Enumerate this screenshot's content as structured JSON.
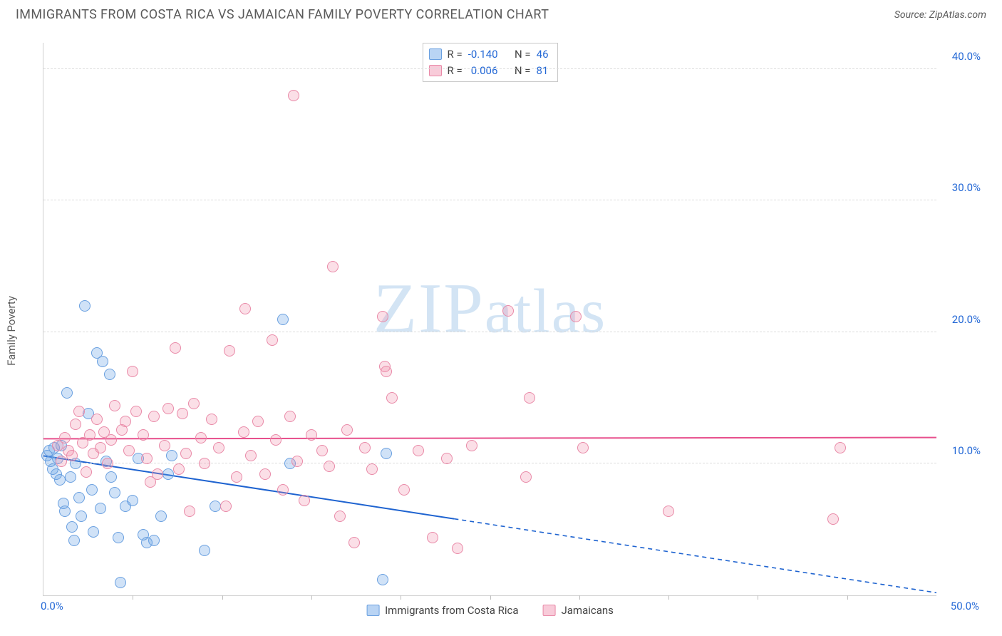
{
  "title": "IMMIGRANTS FROM COSTA RICA VS JAMAICAN FAMILY POVERTY CORRELATION CHART",
  "source": "Source: ZipAtlas.com",
  "ylabel": "Family Poverty",
  "watermark": "ZIPatlas",
  "chart": {
    "type": "scatter",
    "x_axis": {
      "min": 0,
      "max": 50,
      "tick_step": 5,
      "label_min": "0.0%",
      "label_max": "50.0%"
    },
    "y_axis": {
      "min": 0,
      "max": 42,
      "ticks": [
        10,
        20,
        30,
        40
      ],
      "tick_labels": [
        "10.0%",
        "20.0%",
        "30.0%",
        "40.0%"
      ]
    },
    "grid_color": "#dcdcdc",
    "axis_color": "#cfcfcf",
    "background_color": "#ffffff",
    "axis_label_color": "#2569d6",
    "title_color": "#5a5a5a"
  },
  "series": [
    {
      "name": "Immigrants from Costa Rica",
      "color_fill": "rgba(100,160,230,0.30)",
      "color_stroke": "#6aa0e0",
      "marker_size": 16,
      "stats": {
        "R": "-0.140",
        "N": "46"
      },
      "trend": {
        "y_at_x0": 10.6,
        "y_at_x50": 0.2,
        "solid_until_x": 23,
        "color": "#1e63d0",
        "width": 2
      },
      "points": [
        [
          0.2,
          10.6
        ],
        [
          0.3,
          11.0
        ],
        [
          0.4,
          10.2
        ],
        [
          0.5,
          9.6
        ],
        [
          0.6,
          11.2
        ],
        [
          0.7,
          9.2
        ],
        [
          0.8,
          10.4
        ],
        [
          0.9,
          8.8
        ],
        [
          1.0,
          11.4
        ],
        [
          1.1,
          7.0
        ],
        [
          1.2,
          6.4
        ],
        [
          1.3,
          15.4
        ],
        [
          1.5,
          9.0
        ],
        [
          1.6,
          5.2
        ],
        [
          1.7,
          4.2
        ],
        [
          1.8,
          10.0
        ],
        [
          2.0,
          7.4
        ],
        [
          2.1,
          6.0
        ],
        [
          2.3,
          22.0
        ],
        [
          2.5,
          13.8
        ],
        [
          2.7,
          8.0
        ],
        [
          2.8,
          4.8
        ],
        [
          3.0,
          18.4
        ],
        [
          3.2,
          6.6
        ],
        [
          3.3,
          17.8
        ],
        [
          3.5,
          10.2
        ],
        [
          3.7,
          16.8
        ],
        [
          3.8,
          9.0
        ],
        [
          4.0,
          7.8
        ],
        [
          4.2,
          4.4
        ],
        [
          4.3,
          1.0
        ],
        [
          4.6,
          6.8
        ],
        [
          5.0,
          7.2
        ],
        [
          5.3,
          10.4
        ],
        [
          5.6,
          4.6
        ],
        [
          5.8,
          4.0
        ],
        [
          6.2,
          4.2
        ],
        [
          6.6,
          6.0
        ],
        [
          7.0,
          9.2
        ],
        [
          7.2,
          10.6
        ],
        [
          9.0,
          3.4
        ],
        [
          9.6,
          6.8
        ],
        [
          13.4,
          21.0
        ],
        [
          13.8,
          10.0
        ],
        [
          19.0,
          1.2
        ],
        [
          19.2,
          10.8
        ]
      ]
    },
    {
      "name": "Jamaicans",
      "color_fill": "rgba(240,140,170,0.28)",
      "color_stroke": "#e98aa8",
      "marker_size": 16,
      "stats": {
        "R": "0.006",
        "N": "81"
      },
      "trend": {
        "y_at_x0": 11.9,
        "y_at_x50": 12.0,
        "solid_until_x": 50,
        "color": "#e74f8c",
        "width": 2
      },
      "points": [
        [
          0.8,
          11.4
        ],
        [
          1.0,
          10.2
        ],
        [
          1.2,
          12.0
        ],
        [
          1.4,
          11.0
        ],
        [
          1.6,
          10.6
        ],
        [
          1.8,
          13.0
        ],
        [
          2.0,
          14.0
        ],
        [
          2.2,
          11.6
        ],
        [
          2.4,
          9.4
        ],
        [
          2.6,
          12.2
        ],
        [
          2.8,
          10.8
        ],
        [
          3.0,
          13.4
        ],
        [
          3.2,
          11.2
        ],
        [
          3.4,
          12.4
        ],
        [
          3.6,
          10.0
        ],
        [
          3.8,
          11.8
        ],
        [
          4.0,
          14.4
        ],
        [
          4.4,
          12.6
        ],
        [
          4.6,
          13.2
        ],
        [
          4.8,
          11.0
        ],
        [
          5.0,
          17.0
        ],
        [
          5.2,
          14.0
        ],
        [
          5.6,
          12.2
        ],
        [
          5.8,
          10.4
        ],
        [
          6.0,
          8.6
        ],
        [
          6.2,
          13.6
        ],
        [
          6.4,
          9.2
        ],
        [
          6.8,
          11.4
        ],
        [
          7.0,
          14.2
        ],
        [
          7.4,
          18.8
        ],
        [
          7.6,
          9.6
        ],
        [
          7.8,
          13.8
        ],
        [
          8.0,
          10.8
        ],
        [
          8.2,
          6.4
        ],
        [
          8.4,
          14.6
        ],
        [
          8.8,
          12.0
        ],
        [
          9.0,
          10.0
        ],
        [
          9.4,
          13.4
        ],
        [
          9.8,
          11.2
        ],
        [
          10.2,
          6.8
        ],
        [
          10.4,
          18.6
        ],
        [
          10.8,
          9.0
        ],
        [
          11.2,
          12.4
        ],
        [
          11.3,
          21.8
        ],
        [
          11.6,
          10.6
        ],
        [
          12.0,
          13.2
        ],
        [
          12.4,
          9.2
        ],
        [
          12.8,
          19.4
        ],
        [
          13.0,
          11.8
        ],
        [
          13.4,
          8.0
        ],
        [
          13.8,
          13.6
        ],
        [
          14.0,
          38.0
        ],
        [
          14.2,
          10.2
        ],
        [
          14.6,
          7.2
        ],
        [
          15.0,
          12.2
        ],
        [
          15.6,
          11.0
        ],
        [
          16.0,
          9.8
        ],
        [
          16.2,
          25.0
        ],
        [
          16.6,
          6.0
        ],
        [
          17.0,
          12.6
        ],
        [
          17.4,
          4.0
        ],
        [
          18.0,
          11.2
        ],
        [
          18.4,
          9.6
        ],
        [
          19.0,
          21.2
        ],
        [
          19.1,
          17.4
        ],
        [
          19.2,
          17.0
        ],
        [
          19.5,
          15.0
        ],
        [
          20.2,
          8.0
        ],
        [
          21.0,
          11.0
        ],
        [
          21.8,
          4.4
        ],
        [
          22.6,
          10.4
        ],
        [
          23.2,
          3.6
        ],
        [
          24.0,
          11.4
        ],
        [
          26.0,
          21.6
        ],
        [
          27.0,
          9.0
        ],
        [
          27.2,
          15.0
        ],
        [
          29.8,
          21.2
        ],
        [
          30.2,
          11.2
        ],
        [
          35.0,
          6.4
        ],
        [
          44.2,
          5.8
        ],
        [
          44.6,
          11.2
        ]
      ]
    }
  ],
  "legend_top_labels": {
    "R": "R =",
    "N": "N ="
  },
  "legend_bottom": [
    {
      "label": "Immigrants from Costa Rica",
      "swatch": "blue"
    },
    {
      "label": "Jamaicans",
      "swatch": "pink"
    }
  ]
}
